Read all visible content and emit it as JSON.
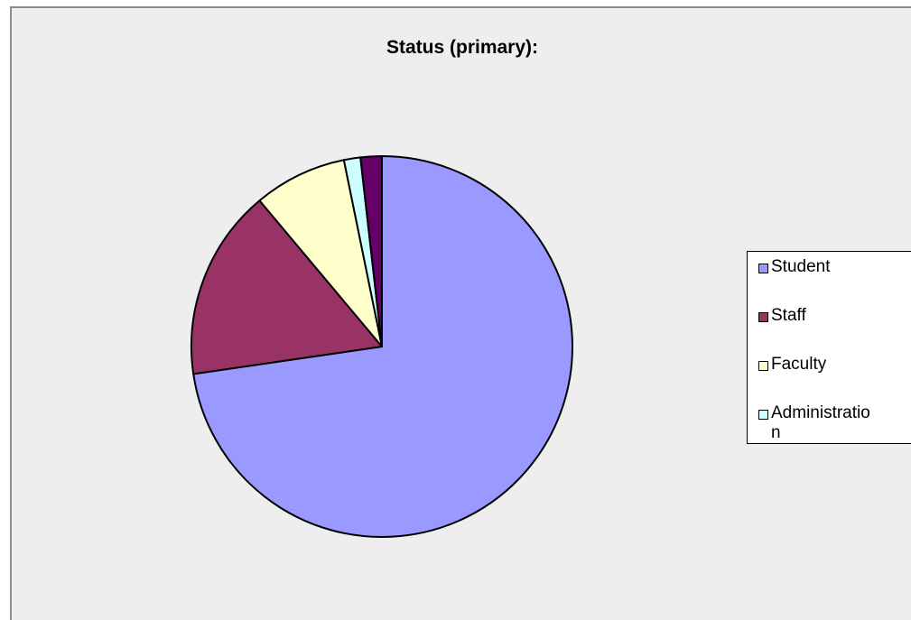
{
  "chart_data": {
    "type": "pie",
    "title": "Status (primary):",
    "slices": [
      {
        "name": "Student",
        "value": 72.7,
        "color": "#9999ff"
      },
      {
        "name": "Staff",
        "value": 16.2,
        "color": "#993366"
      },
      {
        "name": "Faculty",
        "value": 7.9,
        "color": "#ffffcc"
      },
      {
        "name": "Administration",
        "value": 1.4,
        "color": "#ccffff"
      },
      {
        "value": 1.8,
        "color": "#660066"
      }
    ],
    "start_angle_deg": 0,
    "direction": "clockwise",
    "legend": {
      "position": "right",
      "entries": [
        "Student",
        "Staff",
        "Faculty",
        "Administratio\nn"
      ]
    }
  }
}
